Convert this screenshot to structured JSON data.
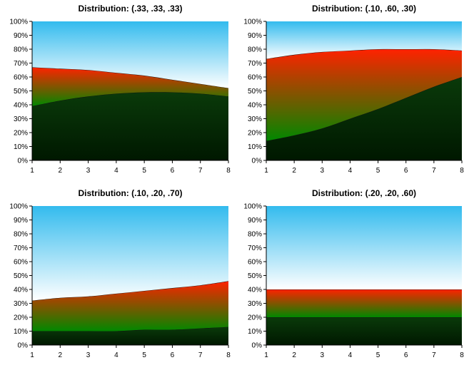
{
  "chart_data": [
    {
      "type": "area",
      "title": "Distribution: (.33, .33, .33)",
      "x": [
        1,
        2,
        3,
        4,
        5,
        6,
        7,
        8
      ],
      "xlim": [
        1,
        8
      ],
      "ylim": [
        0,
        100
      ],
      "y_tick_labels": [
        "0%",
        "10%",
        "20%",
        "30%",
        "40%",
        "50%",
        "60%",
        "70%",
        "80%",
        "90%",
        "100%"
      ],
      "x_tick_labels": [
        "1",
        "2",
        "3",
        "4",
        "5",
        "6",
        "7",
        "8"
      ],
      "stacked": true,
      "series": [
        {
          "values": [
            39,
            43,
            46,
            48,
            49,
            49,
            48,
            46
          ]
        },
        {
          "values": [
            28,
            23,
            19,
            15,
            12,
            9,
            7,
            6
          ]
        },
        {
          "values": [
            33,
            34,
            35,
            37,
            39,
            42,
            45,
            48
          ]
        }
      ]
    },
    {
      "type": "area",
      "title": "Distribution: (.10, .60, .30)",
      "x": [
        1,
        2,
        3,
        4,
        5,
        6,
        7,
        8
      ],
      "xlim": [
        1,
        8
      ],
      "ylim": [
        0,
        100
      ],
      "y_tick_labels": [
        "0%",
        "10%",
        "20%",
        "30%",
        "40%",
        "50%",
        "60%",
        "70%",
        "80%",
        "90%",
        "100%"
      ],
      "x_tick_labels": [
        "1",
        "2",
        "3",
        "4",
        "5",
        "6",
        "7",
        "8"
      ],
      "stacked": true,
      "series": [
        {
          "values": [
            14,
            18,
            23,
            30,
            37,
            45,
            53,
            60
          ]
        },
        {
          "values": [
            59,
            58,
            55,
            49,
            43,
            35,
            27,
            19
          ]
        },
        {
          "values": [
            27,
            24,
            22,
            21,
            20,
            20,
            20,
            21
          ]
        }
      ]
    },
    {
      "type": "area",
      "title": "Distribution: (.10, .20, .70)",
      "x": [
        1,
        2,
        3,
        4,
        5,
        6,
        7,
        8
      ],
      "xlim": [
        1,
        8
      ],
      "ylim": [
        0,
        100
      ],
      "y_tick_labels": [
        "0%",
        "10%",
        "20%",
        "30%",
        "40%",
        "50%",
        "60%",
        "70%",
        "80%",
        "90%",
        "100%"
      ],
      "x_tick_labels": [
        "1",
        "2",
        "3",
        "4",
        "5",
        "6",
        "7",
        "8"
      ],
      "stacked": true,
      "series": [
        {
          "values": [
            10,
            10,
            10,
            10,
            11,
            11,
            12,
            13
          ]
        },
        {
          "values": [
            22,
            24,
            25,
            27,
            28,
            30,
            31,
            33
          ]
        },
        {
          "values": [
            68,
            66,
            65,
            63,
            61,
            59,
            57,
            54
          ]
        }
      ]
    },
    {
      "type": "area",
      "title": "Distribution: (.20, .20, .60)",
      "x": [
        1,
        2,
        3,
        4,
        5,
        6,
        7,
        8
      ],
      "xlim": [
        1,
        8
      ],
      "ylim": [
        0,
        100
      ],
      "y_tick_labels": [
        "0%",
        "10%",
        "20%",
        "30%",
        "40%",
        "50%",
        "60%",
        "70%",
        "80%",
        "90%",
        "100%"
      ],
      "x_tick_labels": [
        "1",
        "2",
        "3",
        "4",
        "5",
        "6",
        "7",
        "8"
      ],
      "stacked": true,
      "series": [
        {
          "values": [
            20,
            20,
            20,
            20,
            20,
            20,
            20,
            20
          ]
        },
        {
          "values": [
            20,
            20,
            20,
            20,
            20,
            20,
            20,
            20
          ]
        },
        {
          "values": [
            60,
            60,
            60,
            60,
            60,
            60,
            60,
            60
          ]
        }
      ]
    }
  ],
  "colors": {
    "bottom_band_top": "#0a3a0a",
    "bottom_band_bottom": "#001800",
    "middle_band_top": "#ff2200",
    "middle_band_bottom": "#008800",
    "top_band_top": "#33bbee",
    "top_band_bottom": "#ffffff"
  }
}
